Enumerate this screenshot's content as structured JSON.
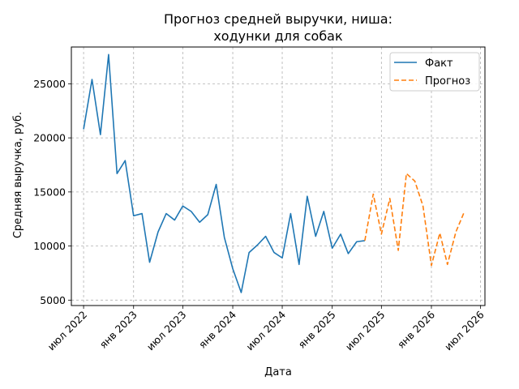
{
  "chart_data": {
    "type": "line",
    "title_lines": [
      "Прогноз средней выручки, ниша:",
      "ходунки для собак"
    ],
    "xlabel": "Дата",
    "ylabel": "Средняя выручка, руб.",
    "x_ticks": [
      {
        "date": "2022-07-01",
        "label": "июл 2022"
      },
      {
        "date": "2023-01-01",
        "label": "янв 2023"
      },
      {
        "date": "2023-07-01",
        "label": "июл 2023"
      },
      {
        "date": "2024-01-01",
        "label": "янв 2024"
      },
      {
        "date": "2024-07-01",
        "label": "июл 2024"
      },
      {
        "date": "2025-01-01",
        "label": "янв 2025"
      },
      {
        "date": "2025-07-01",
        "label": "июл 2025"
      },
      {
        "date": "2026-01-01",
        "label": "янв 2026"
      },
      {
        "date": "2026-07-01",
        "label": "июл 2026"
      }
    ],
    "y_ticks": [
      5000,
      10000,
      15000,
      20000,
      25000
    ],
    "xlim": [
      "2022-05-17",
      "2026-07-17"
    ],
    "ylim": [
      4500,
      28400
    ],
    "grid": true,
    "legend_position": "top-right",
    "series": [
      {
        "name": "Факт",
        "style": "solid",
        "color": "#1f77b4",
        "points": [
          [
            "2022-07-01",
            20800
          ],
          [
            "2022-08-01",
            25400
          ],
          [
            "2022-09-01",
            20300
          ],
          [
            "2022-10-01",
            27700
          ],
          [
            "2022-11-01",
            16700
          ],
          [
            "2022-12-01",
            17900
          ],
          [
            "2023-01-01",
            12800
          ],
          [
            "2023-02-01",
            13000
          ],
          [
            "2023-03-01",
            8500
          ],
          [
            "2023-04-01",
            11300
          ],
          [
            "2023-05-01",
            13000
          ],
          [
            "2023-06-01",
            12400
          ],
          [
            "2023-07-01",
            13700
          ],
          [
            "2023-08-01",
            13200
          ],
          [
            "2023-09-01",
            12200
          ],
          [
            "2023-10-01",
            12900
          ],
          [
            "2023-11-01",
            15700
          ],
          [
            "2023-12-01",
            10800
          ],
          [
            "2024-01-01",
            7900
          ],
          [
            "2024-02-01",
            5700
          ],
          [
            "2024-03-01",
            9400
          ],
          [
            "2024-04-01",
            10100
          ],
          [
            "2024-05-01",
            10900
          ],
          [
            "2024-06-01",
            9400
          ],
          [
            "2024-07-01",
            8900
          ],
          [
            "2024-08-01",
            13000
          ],
          [
            "2024-09-01",
            8300
          ],
          [
            "2024-10-01",
            14600
          ],
          [
            "2024-11-01",
            10900
          ],
          [
            "2024-12-01",
            13200
          ],
          [
            "2025-01-01",
            9800
          ],
          [
            "2025-02-01",
            11100
          ],
          [
            "2025-03-01",
            9300
          ],
          [
            "2025-04-01",
            10400
          ],
          [
            "2025-05-01",
            10500
          ]
        ]
      },
      {
        "name": "Прогноз",
        "style": "dashed",
        "color": "#ff7f0e",
        "points": [
          [
            "2025-05-01",
            10500
          ],
          [
            "2025-06-01",
            14800
          ],
          [
            "2025-07-01",
            11100
          ],
          [
            "2025-08-01",
            14400
          ],
          [
            "2025-09-01",
            9600
          ],
          [
            "2025-10-01",
            16700
          ],
          [
            "2025-11-01",
            16000
          ],
          [
            "2025-12-01",
            13700
          ],
          [
            "2026-01-01",
            8200
          ],
          [
            "2026-02-01",
            11200
          ],
          [
            "2026-03-01",
            8300
          ],
          [
            "2026-04-01",
            11300
          ],
          [
            "2026-05-01",
            13100
          ]
        ]
      }
    ]
  }
}
